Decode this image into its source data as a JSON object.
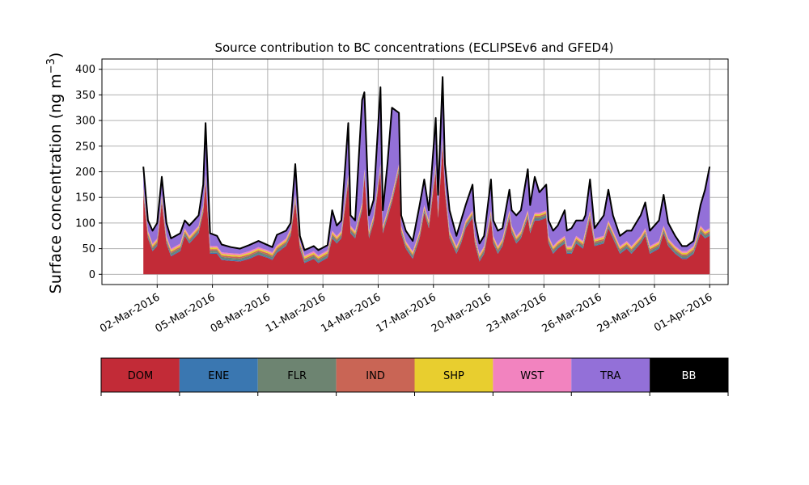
{
  "chart_data": {
    "type": "area",
    "title": "Source contribution to BC concentrations (ECLIPSEv6 and GFED4)",
    "ylabel": "Surface concentration (ng m",
    "ylabel_sup": "−3",
    "ylabel_close": ")",
    "xlabel": "",
    "x_range": [
      "2016-02-28T00:00",
      "2016-04-02T00:00"
    ],
    "ylim": [
      -20,
      420
    ],
    "yticks": [
      0,
      50,
      100,
      150,
      200,
      250,
      300,
      350,
      400
    ],
    "xticks": [
      {
        "date": "2016-03-02",
        "label": "02-Mar-2016"
      },
      {
        "date": "2016-03-05",
        "label": "05-Mar-2016"
      },
      {
        "date": "2016-03-08",
        "label": "08-Mar-2016"
      },
      {
        "date": "2016-03-11",
        "label": "11-Mar-2016"
      },
      {
        "date": "2016-03-14",
        "label": "14-Mar-2016"
      },
      {
        "date": "2016-03-17",
        "label": "17-Mar-2016"
      },
      {
        "date": "2016-03-20",
        "label": "20-Mar-2016"
      },
      {
        "date": "2016-03-23",
        "label": "23-Mar-2016"
      },
      {
        "date": "2016-03-26",
        "label": "26-Mar-2016"
      },
      {
        "date": "2016-03-29",
        "label": "29-Mar-2016"
      },
      {
        "date": "2016-04-01",
        "label": "01-Apr-2016"
      }
    ],
    "grid": true,
    "stacked": true,
    "legend_position": "bottom",
    "series": [
      {
        "name": "DOM",
        "color": "#c22b37",
        "points": [
          [
            "2016-03-01T06:00",
            155
          ],
          [
            "2016-03-01T12:00",
            70
          ],
          [
            "2016-03-01T18:00",
            45
          ],
          [
            "2016-03-02T00:00",
            55
          ],
          [
            "2016-03-02T06:00",
            140
          ],
          [
            "2016-03-02T12:00",
            60
          ],
          [
            "2016-03-02T18:00",
            35
          ],
          [
            "2016-03-03T06:00",
            45
          ],
          [
            "2016-03-03T12:00",
            75
          ],
          [
            "2016-03-03T18:00",
            60
          ],
          [
            "2016-03-04T06:00",
            80
          ],
          [
            "2016-03-04T12:00",
            120
          ],
          [
            "2016-03-04T15:00",
            180
          ],
          [
            "2016-03-04T21:00",
            40
          ],
          [
            "2016-03-05T06:00",
            40
          ],
          [
            "2016-03-05T12:00",
            28
          ],
          [
            "2016-03-06T00:00",
            26
          ],
          [
            "2016-03-06T12:00",
            25
          ],
          [
            "2016-03-07T00:00",
            30
          ],
          [
            "2016-03-07T12:00",
            38
          ],
          [
            "2016-03-08T00:00",
            32
          ],
          [
            "2016-03-08T06:00",
            28
          ],
          [
            "2016-03-08T12:00",
            42
          ],
          [
            "2016-03-09T00:00",
            55
          ],
          [
            "2016-03-09T06:00",
            75
          ],
          [
            "2016-03-09T12:00",
            140
          ],
          [
            "2016-03-09T18:00",
            50
          ],
          [
            "2016-03-10T00:00",
            22
          ],
          [
            "2016-03-10T12:00",
            30
          ],
          [
            "2016-03-10T18:00",
            22
          ],
          [
            "2016-03-11T06:00",
            32
          ],
          [
            "2016-03-11T12:00",
            70
          ],
          [
            "2016-03-11T18:00",
            60
          ],
          [
            "2016-03-12T00:00",
            70
          ],
          [
            "2016-03-12T09:00",
            180
          ],
          [
            "2016-03-12T12:00",
            80
          ],
          [
            "2016-03-12T18:00",
            70
          ],
          [
            "2016-03-13T03:00",
            125
          ],
          [
            "2016-03-13T06:00",
            190
          ],
          [
            "2016-03-13T12:00",
            70
          ],
          [
            "2016-03-13T18:00",
            100
          ],
          [
            "2016-03-14T03:00",
            200
          ],
          [
            "2016-03-14T06:00",
            80
          ],
          [
            "2016-03-14T12:00",
            110
          ],
          [
            "2016-03-14T18:00",
            140
          ],
          [
            "2016-03-15T03:00",
            200
          ],
          [
            "2016-03-15T06:00",
            80
          ],
          [
            "2016-03-15T12:00",
            50
          ],
          [
            "2016-03-15T21:00",
            30
          ],
          [
            "2016-03-16T06:00",
            70
          ],
          [
            "2016-03-16T12:00",
            120
          ],
          [
            "2016-03-16T18:00",
            90
          ],
          [
            "2016-03-17T03:00",
            200
          ],
          [
            "2016-03-17T06:00",
            110
          ],
          [
            "2016-03-17T12:00",
            250
          ],
          [
            "2016-03-17T15:00",
            160
          ],
          [
            "2016-03-17T21:00",
            70
          ],
          [
            "2016-03-18T06:00",
            40
          ],
          [
            "2016-03-18T12:00",
            60
          ],
          [
            "2016-03-18T18:00",
            90
          ],
          [
            "2016-03-19T03:00",
            110
          ],
          [
            "2016-03-19T06:00",
            60
          ],
          [
            "2016-03-19T12:00",
            25
          ],
          [
            "2016-03-19T18:00",
            40
          ],
          [
            "2016-03-20T03:00",
            110
          ],
          [
            "2016-03-20T06:00",
            60
          ],
          [
            "2016-03-20T12:00",
            40
          ],
          [
            "2016-03-20T18:00",
            55
          ],
          [
            "2016-03-21T03:00",
            110
          ],
          [
            "2016-03-21T06:00",
            80
          ],
          [
            "2016-03-21T12:00",
            60
          ],
          [
            "2016-03-21T18:00",
            70
          ],
          [
            "2016-03-22T03:00",
            110
          ],
          [
            "2016-03-22T06:00",
            80
          ],
          [
            "2016-03-22T12:00",
            105
          ],
          [
            "2016-03-22T18:00",
            105
          ],
          [
            "2016-03-23T03:00",
            110
          ],
          [
            "2016-03-23T06:00",
            60
          ],
          [
            "2016-03-23T12:00",
            40
          ],
          [
            "2016-03-23T18:00",
            50
          ],
          [
            "2016-03-24T03:00",
            60
          ],
          [
            "2016-03-24T06:00",
            40
          ],
          [
            "2016-03-24T12:00",
            40
          ],
          [
            "2016-03-24T18:00",
            60
          ],
          [
            "2016-03-25T03:00",
            50
          ],
          [
            "2016-03-25T06:00",
            70
          ],
          [
            "2016-03-25T12:00",
            110
          ],
          [
            "2016-03-25T18:00",
            55
          ],
          [
            "2016-03-26T06:00",
            60
          ],
          [
            "2016-03-26T12:00",
            90
          ],
          [
            "2016-03-26T18:00",
            70
          ],
          [
            "2016-03-27T03:00",
            40
          ],
          [
            "2016-03-27T12:00",
            50
          ],
          [
            "2016-03-27T18:00",
            40
          ],
          [
            "2016-03-28T06:00",
            60
          ],
          [
            "2016-03-28T12:00",
            75
          ],
          [
            "2016-03-28T18:00",
            40
          ],
          [
            "2016-03-29T06:00",
            50
          ],
          [
            "2016-03-29T12:00",
            80
          ],
          [
            "2016-03-29T18:00",
            55
          ],
          [
            "2016-03-30T03:00",
            40
          ],
          [
            "2016-03-30T12:00",
            30
          ],
          [
            "2016-03-30T18:00",
            30
          ],
          [
            "2016-03-31T03:00",
            40
          ],
          [
            "2016-03-31T12:00",
            80
          ],
          [
            "2016-03-31T18:00",
            70
          ],
          [
            "2016-04-01T00:00",
            75
          ]
        ]
      },
      {
        "name": "ENE",
        "color": "#3a77b1",
        "points": [
          [
            "2016-03-01T06:00",
            2
          ],
          [
            "2016-04-01T00:00",
            2
          ]
        ]
      },
      {
        "name": "FLR",
        "color": "#6d8471",
        "points": [
          [
            "2016-03-01T06:00",
            4
          ],
          [
            "2016-04-01T00:00",
            4
          ]
        ]
      },
      {
        "name": "IND",
        "color": "#c96555",
        "points": [
          [
            "2016-03-01T06:00",
            3
          ],
          [
            "2016-04-01T00:00",
            3
          ]
        ]
      },
      {
        "name": "SHP",
        "color": "#e8ce2f",
        "points": [
          [
            "2016-03-01T06:00",
            3
          ],
          [
            "2016-04-01T00:00",
            3
          ]
        ]
      },
      {
        "name": "WST",
        "color": "#f283bf",
        "points": [
          [
            "2016-03-01T06:00",
            3
          ],
          [
            "2016-04-01T00:00",
            3
          ]
        ]
      },
      {
        "name": "TRA",
        "color": "#9370d8",
        "points": [
          [
            "2016-03-01T06:00",
            40
          ],
          [
            "2016-03-01T12:00",
            20
          ],
          [
            "2016-03-01T18:00",
            25
          ],
          [
            "2016-03-02T00:00",
            30
          ],
          [
            "2016-03-02T06:00",
            35
          ],
          [
            "2016-03-02T12:00",
            25
          ],
          [
            "2016-03-02T18:00",
            20
          ],
          [
            "2016-03-03T06:00",
            20
          ],
          [
            "2016-03-03T12:00",
            15
          ],
          [
            "2016-03-03T18:00",
            20
          ],
          [
            "2016-03-04T06:00",
            20
          ],
          [
            "2016-03-04T12:00",
            40
          ],
          [
            "2016-03-04T15:00",
            100
          ],
          [
            "2016-03-04T21:00",
            25
          ],
          [
            "2016-03-05T06:00",
            20
          ],
          [
            "2016-03-05T12:00",
            15
          ],
          [
            "2016-03-06T00:00",
            12
          ],
          [
            "2016-03-06T12:00",
            10
          ],
          [
            "2016-03-07T00:00",
            12
          ],
          [
            "2016-03-07T12:00",
            12
          ],
          [
            "2016-03-08T00:00",
            10
          ],
          [
            "2016-03-08T06:00",
            10
          ],
          [
            "2016-03-08T12:00",
            20
          ],
          [
            "2016-03-09T00:00",
            15
          ],
          [
            "2016-03-09T06:00",
            10
          ],
          [
            "2016-03-09T12:00",
            60
          ],
          [
            "2016-03-09T18:00",
            10
          ],
          [
            "2016-03-10T00:00",
            10
          ],
          [
            "2016-03-10T12:00",
            10
          ],
          [
            "2016-03-10T18:00",
            10
          ],
          [
            "2016-03-11T06:00",
            10
          ],
          [
            "2016-03-11T12:00",
            40
          ],
          [
            "2016-03-11T18:00",
            20
          ],
          [
            "2016-03-12T00:00",
            20
          ],
          [
            "2016-03-12T09:00",
            100
          ],
          [
            "2016-03-12T12:00",
            20
          ],
          [
            "2016-03-12T18:00",
            20
          ],
          [
            "2016-03-13T03:00",
            200
          ],
          [
            "2016-03-13T06:00",
            150
          ],
          [
            "2016-03-13T12:00",
            30
          ],
          [
            "2016-03-13T18:00",
            30
          ],
          [
            "2016-03-14T03:00",
            150
          ],
          [
            "2016-03-14T06:00",
            30
          ],
          [
            "2016-03-14T12:00",
            90
          ],
          [
            "2016-03-14T18:00",
            170
          ],
          [
            "2016-03-15T03:00",
            100
          ],
          [
            "2016-03-15T06:00",
            20
          ],
          [
            "2016-03-15T12:00",
            20
          ],
          [
            "2016-03-15T21:00",
            20
          ],
          [
            "2016-03-16T06:00",
            50
          ],
          [
            "2016-03-16T12:00",
            50
          ],
          [
            "2016-03-16T18:00",
            20
          ],
          [
            "2016-03-17T03:00",
            90
          ],
          [
            "2016-03-17T06:00",
            30
          ],
          [
            "2016-03-17T12:00",
            120
          ],
          [
            "2016-03-17T15:00",
            40
          ],
          [
            "2016-03-17T21:00",
            40
          ],
          [
            "2016-03-18T06:00",
            20
          ],
          [
            "2016-03-18T12:00",
            30
          ],
          [
            "2016-03-18T18:00",
            30
          ],
          [
            "2016-03-19T03:00",
            50
          ],
          [
            "2016-03-19T06:00",
            30
          ],
          [
            "2016-03-19T12:00",
            20
          ],
          [
            "2016-03-19T18:00",
            20
          ],
          [
            "2016-03-20T03:00",
            60
          ],
          [
            "2016-03-20T06:00",
            30
          ],
          [
            "2016-03-20T12:00",
            30
          ],
          [
            "2016-03-20T18:00",
            20
          ],
          [
            "2016-03-21T03:00",
            40
          ],
          [
            "2016-03-21T06:00",
            30
          ],
          [
            "2016-03-21T12:00",
            40
          ],
          [
            "2016-03-21T18:00",
            40
          ],
          [
            "2016-03-22T03:00",
            80
          ],
          [
            "2016-03-22T06:00",
            40
          ],
          [
            "2016-03-22T12:00",
            70
          ],
          [
            "2016-03-22T18:00",
            40
          ],
          [
            "2016-03-23T03:00",
            50
          ],
          [
            "2016-03-23T06:00",
            30
          ],
          [
            "2016-03-23T12:00",
            30
          ],
          [
            "2016-03-23T18:00",
            30
          ],
          [
            "2016-03-24T03:00",
            50
          ],
          [
            "2016-03-24T06:00",
            30
          ],
          [
            "2016-03-24T12:00",
            35
          ],
          [
            "2016-03-24T18:00",
            30
          ],
          [
            "2016-03-25T03:00",
            40
          ],
          [
            "2016-03-25T06:00",
            30
          ],
          [
            "2016-03-25T12:00",
            60
          ],
          [
            "2016-03-25T18:00",
            20
          ],
          [
            "2016-03-26T06:00",
            40
          ],
          [
            "2016-03-26T12:00",
            60
          ],
          [
            "2016-03-26T18:00",
            30
          ],
          [
            "2016-03-27T03:00",
            20
          ],
          [
            "2016-03-27T12:00",
            20
          ],
          [
            "2016-03-27T18:00",
            30
          ],
          [
            "2016-03-28T06:00",
            40
          ],
          [
            "2016-03-28T12:00",
            50
          ],
          [
            "2016-03-28T18:00",
            30
          ],
          [
            "2016-03-29T06:00",
            40
          ],
          [
            "2016-03-29T12:00",
            60
          ],
          [
            "2016-03-29T18:00",
            30
          ],
          [
            "2016-03-30T03:00",
            20
          ],
          [
            "2016-03-30T12:00",
            10
          ],
          [
            "2016-03-30T18:00",
            10
          ],
          [
            "2016-03-31T03:00",
            10
          ],
          [
            "2016-03-31T12:00",
            40
          ],
          [
            "2016-03-31T18:00",
            80
          ],
          [
            "2016-04-01T00:00",
            120
          ]
        ]
      },
      {
        "name": "BB",
        "color": "#000000",
        "points": [
          [
            "2016-03-01T06:00",
            0
          ],
          [
            "2016-04-01T00:00",
            0
          ]
        ]
      }
    ]
  }
}
